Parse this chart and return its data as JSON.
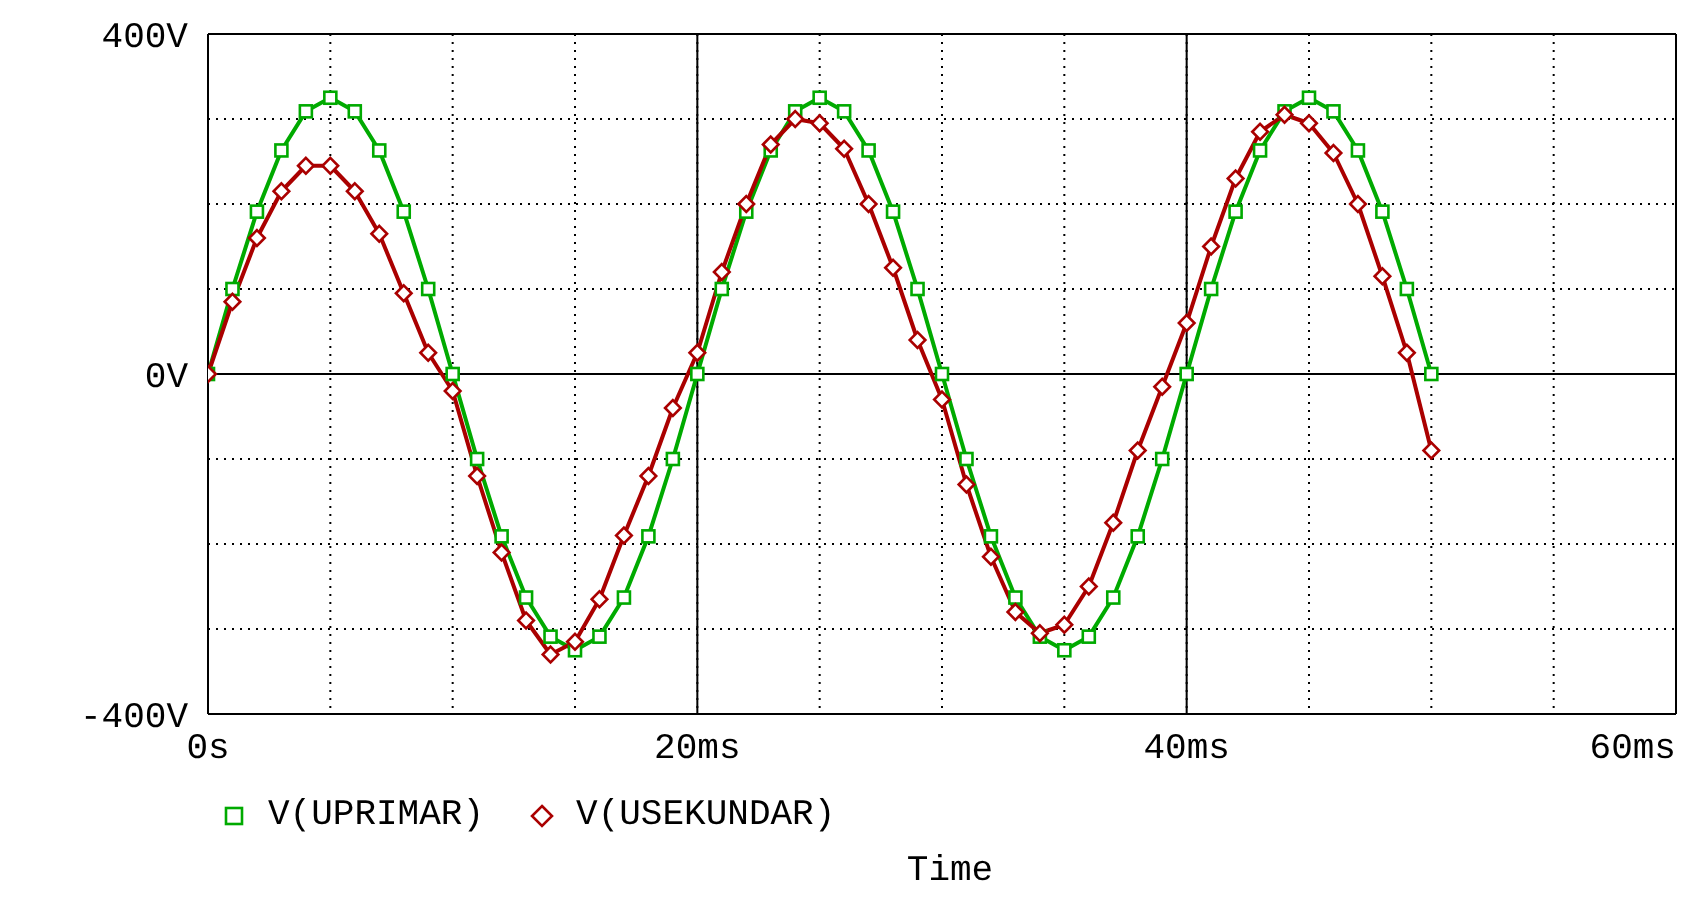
{
  "chart_data": {
    "type": "line",
    "xlabel": "Time",
    "x": [
      0,
      1,
      2,
      3,
      4,
      5,
      6,
      7,
      8,
      9,
      10,
      11,
      12,
      13,
      14,
      15,
      16,
      17,
      18,
      19,
      20,
      21,
      22,
      23,
      24,
      25,
      26,
      27,
      28,
      29,
      30,
      31,
      32,
      33,
      34,
      35,
      36,
      37,
      38,
      39,
      40,
      41,
      42,
      43,
      44,
      45,
      46,
      47,
      48,
      49,
      50
    ],
    "series": [
      {
        "name": "V(UPRIMAR)",
        "color": "#00aa00",
        "marker": "square",
        "values": [
          0,
          100,
          191,
          263,
          309,
          325,
          309,
          263,
          191,
          100,
          0,
          -100,
          -191,
          -263,
          -309,
          -325,
          -309,
          -263,
          -191,
          -100,
          0,
          100,
          191,
          263,
          309,
          325,
          309,
          263,
          191,
          100,
          0,
          -100,
          -191,
          -263,
          -309,
          -325,
          -309,
          -263,
          -191,
          -100,
          0,
          100,
          191,
          263,
          309,
          325,
          309,
          263,
          191,
          100,
          0
        ]
      },
      {
        "name": "V(USEKUNDAR)",
        "color": "#aa0000",
        "marker": "diamond",
        "values": [
          0,
          85,
          160,
          215,
          245,
          245,
          215,
          165,
          95,
          25,
          -20,
          -120,
          -210,
          -290,
          -330,
          -315,
          -265,
          -190,
          -120,
          -40,
          25,
          120,
          200,
          270,
          300,
          295,
          265,
          200,
          125,
          40,
          -30,
          -130,
          -215,
          -280,
          -305,
          -295,
          -250,
          -175,
          -90,
          -15,
          60,
          150,
          230,
          285,
          305,
          295,
          260,
          200,
          115,
          25,
          -90
        ]
      }
    ],
    "xlim": [
      0,
      60
    ],
    "xticks": [
      {
        "value": 0,
        "label": "0s"
      },
      {
        "value": 5,
        "label": null
      },
      {
        "value": 10,
        "label": null
      },
      {
        "value": 15,
        "label": null
      },
      {
        "value": 20,
        "label": "20ms"
      },
      {
        "value": 25,
        "label": null
      },
      {
        "value": 30,
        "label": null
      },
      {
        "value": 35,
        "label": null
      },
      {
        "value": 40,
        "label": "40ms"
      },
      {
        "value": 45,
        "label": null
      },
      {
        "value": 50,
        "label": null
      },
      {
        "value": 55,
        "label": null
      },
      {
        "value": 60,
        "label": "60ms"
      }
    ],
    "ylim": [
      -400,
      400
    ],
    "yticks": [
      {
        "value": -400,
        "label": "-400V"
      },
      {
        "value": -300,
        "label": null
      },
      {
        "value": -200,
        "label": null
      },
      {
        "value": -100,
        "label": null
      },
      {
        "value": 0,
        "label": "0V"
      },
      {
        "value": 100,
        "label": null
      },
      {
        "value": 200,
        "label": null
      },
      {
        "value": 300,
        "label": null
      },
      {
        "value": 400,
        "label": "400V"
      }
    ],
    "grid": true,
    "legend": "bottom left"
  }
}
